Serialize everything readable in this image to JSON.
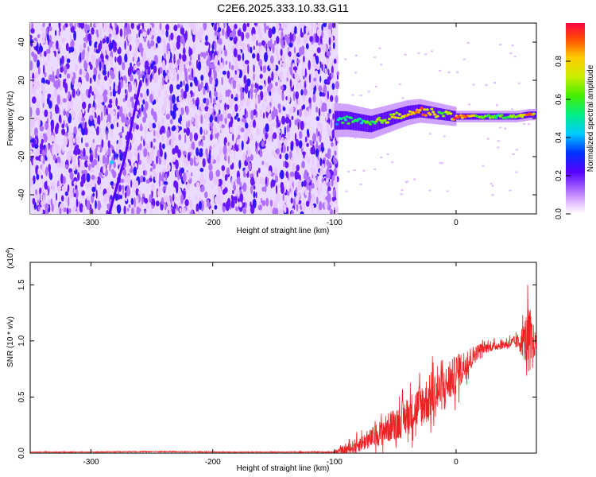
{
  "title": "C2E6.2025.333.10.33.G11",
  "chart_data": [
    {
      "type": "heatmap",
      "xlabel": "Height of straight line (km)",
      "ylabel": "Frequency (Hz)",
      "xlim": [
        -350,
        66
      ],
      "ylim": [
        -50,
        50
      ],
      "xticks": [
        -300,
        -200,
        -100,
        0
      ],
      "yticks": [
        -40,
        -20,
        0,
        20,
        40
      ],
      "colorbar": {
        "label": "Normalized spectral amplitude",
        "range": [
          0,
          1
        ],
        "ticks": [
          0.0,
          0.2,
          0.4,
          0.6,
          0.8
        ],
        "tick_labels": [
          "0.0",
          "0.2",
          "0.4",
          "0.6",
          "0.8"
        ]
      },
      "noise_region_km": [
        -350,
        -97
      ],
      "streak": {
        "x": [
          -285,
          -272,
          -259
        ],
        "y": [
          -50,
          -20,
          20
        ]
      },
      "ridge": {
        "x": [
          -100,
          -90,
          -80,
          -70,
          -60,
          -50,
          -40,
          -30,
          -20,
          -10,
          0,
          10,
          20,
          30,
          40,
          50,
          60,
          66
        ],
        "y": [
          -1,
          -1,
          -2,
          -3,
          -1,
          1,
          3,
          4,
          3,
          2,
          1,
          1,
          1,
          1,
          1,
          1,
          2,
          2
        ],
        "amplitude": [
          0.45,
          0.6,
          0.55,
          0.6,
          0.7,
          0.75,
          0.8,
          0.85,
          0.75,
          0.6,
          0.9,
          0.85,
          0.65,
          0.6,
          0.6,
          0.65,
          0.9,
          0.7
        ]
      }
    },
    {
      "type": "line",
      "xlabel": "Height of straight line (km)",
      "ylabel": "SNR (10 * v/v)",
      "multiplier_label": "(x10",
      "multiplier_exp": "4",
      "xlim": [
        -350,
        66
      ],
      "ylim": [
        0,
        1.7
      ],
      "xticks": [
        -300,
        -200,
        -100,
        0
      ],
      "yticks": [
        0.0,
        0.5,
        1.0,
        1.5
      ],
      "ytick_labels": [
        "0.0",
        "0.5",
        "1.0",
        "1.5"
      ],
      "color": "#ee2222",
      "series": [
        {
          "x": [
            -350,
            -300,
            -250,
            -200,
            -150,
            -100,
            -90,
            -80,
            -70,
            -60,
            -50,
            -40,
            -30,
            -20,
            -10,
            0,
            10,
            20,
            30,
            40,
            50,
            55,
            58,
            60,
            62,
            66
          ],
          "y": [
            0.01,
            0.01,
            0.015,
            0.01,
            0.01,
            0.01,
            0.03,
            0.08,
            0.13,
            0.2,
            0.26,
            0.33,
            0.42,
            0.5,
            0.58,
            0.7,
            0.82,
            0.93,
            0.95,
            0.97,
            0.99,
            1.0,
            1.02,
            1.0,
            0.98,
            0.98
          ],
          "spread": [
            0.003,
            0.003,
            0.004,
            0.003,
            0.003,
            0.004,
            0.05,
            0.07,
            0.09,
            0.12,
            0.15,
            0.17,
            0.2,
            0.22,
            0.18,
            0.18,
            0.12,
            0.05,
            0.04,
            0.04,
            0.06,
            0.15,
            0.25,
            0.35,
            0.25,
            0.05
          ]
        }
      ]
    }
  ]
}
